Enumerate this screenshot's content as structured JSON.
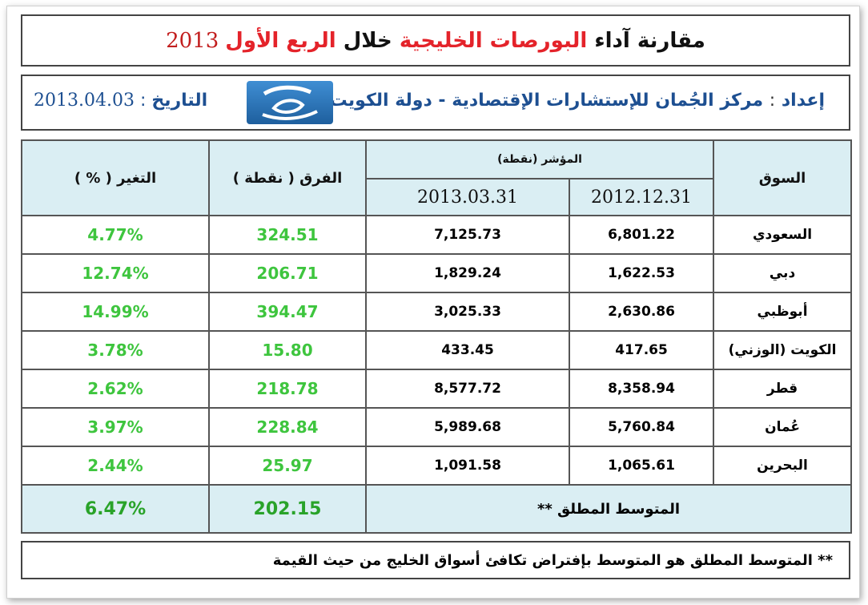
{
  "title": {
    "part1": "مقارنة آداء",
    "part2": "البورصات الخليجية",
    "part3": "خلال",
    "part4": "الربع الأول",
    "year": "2013"
  },
  "info": {
    "prep_label": "إعداد",
    "colon": ":",
    "prep_value": "مركز الجُمان للإستشارات الإقتصادية - دولة الكويت",
    "date_label": "التاريخ",
    "date_value": "2013.04.03"
  },
  "table": {
    "headers": {
      "market": "السوق",
      "index": "المؤشر (نقطة)",
      "date1": "2012.12.31",
      "date2": "2013.03.31",
      "diff": "الفرق ( نقطة )",
      "change": "التغير ( % )"
    },
    "rows": [
      {
        "market": "السعودي",
        "v1": "6,801.22",
        "v2": "7,125.73",
        "diff": "324.51",
        "change": "4.77%"
      },
      {
        "market": "دبي",
        "v1": "1,622.53",
        "v2": "1,829.24",
        "diff": "206.71",
        "change": "12.74%"
      },
      {
        "market": "أبوظبي",
        "v1": "2,630.86",
        "v2": "3,025.33",
        "diff": "394.47",
        "change": "14.99%"
      },
      {
        "market": "الكويت (الوزني)",
        "v1": "417.65",
        "v2": "433.45",
        "diff": "15.80",
        "change": "3.78%"
      },
      {
        "market": "قطر",
        "v1": "8,358.94",
        "v2": "8,577.72",
        "diff": "218.78",
        "change": "2.62%"
      },
      {
        "market": "عُمان",
        "v1": "5,760.84",
        "v2": "5,989.68",
        "diff": "228.84",
        "change": "3.97%"
      },
      {
        "market": "البحرين",
        "v1": "1,065.61",
        "v2": "1,091.58",
        "diff": "25.97",
        "change": "2.44%"
      }
    ],
    "average": {
      "label": "المتوسط المطلق **",
      "diff": "202.15",
      "change": "6.47%"
    }
  },
  "note": "** المتوسط المطلق هو المتوسط بإفتراض تكافئ أسواق الخليج من حيث القيمة",
  "colors": {
    "accent_red": "#e4232a",
    "accent_blue": "#1d4f91",
    "header_bg": "#daeef3",
    "green": "#3ec53e"
  }
}
